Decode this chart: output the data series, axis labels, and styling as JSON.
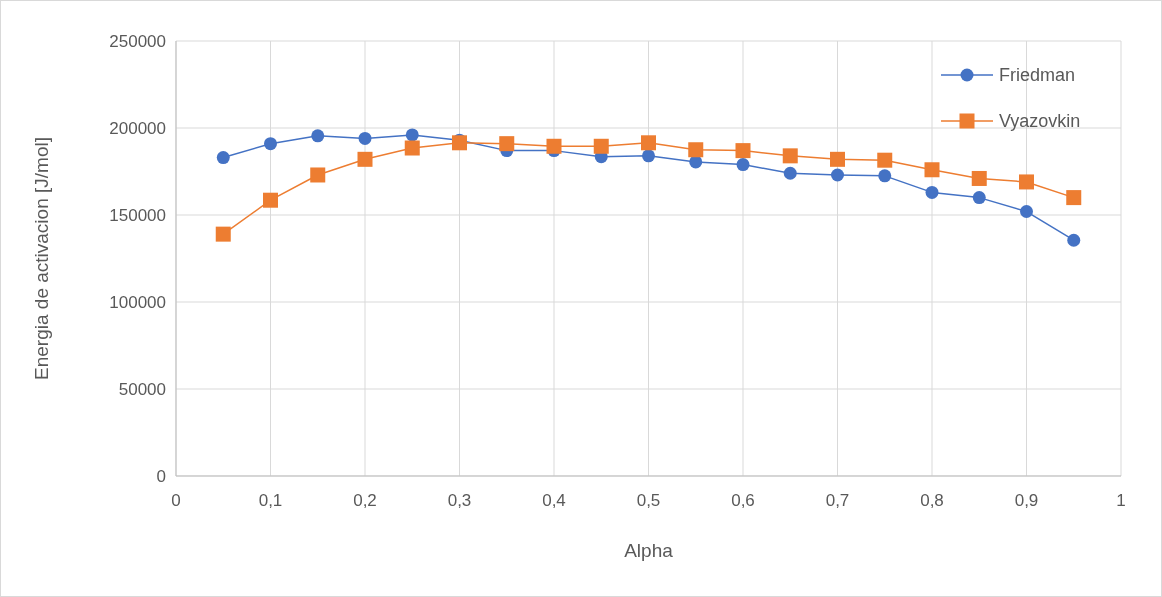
{
  "chart_data": {
    "type": "line",
    "xlabel": "Alpha",
    "ylabel": "Energia de activacion [J/mol]",
    "x": [
      0.05,
      0.1,
      0.15,
      0.2,
      0.25,
      0.3,
      0.35,
      0.4,
      0.45,
      0.5,
      0.55,
      0.6,
      0.65,
      0.7,
      0.75,
      0.8,
      0.85,
      0.9,
      0.95
    ],
    "series": [
      {
        "name": "Friedman",
        "color": "#4472c4",
        "marker": "circle",
        "values": [
          183000,
          191000,
          195500,
          194000,
          196000,
          193000,
          187000,
          187000,
          183500,
          184000,
          180500,
          179000,
          174000,
          173000,
          172500,
          163000,
          160000,
          152000,
          135500
        ]
      },
      {
        "name": "Vyazovkin",
        "color": "#ed7d31",
        "marker": "square",
        "values": [
          139000,
          158500,
          173000,
          182000,
          188500,
          191500,
          191000,
          189500,
          189500,
          191500,
          187500,
          187000,
          184000,
          182000,
          181500,
          176000,
          171000,
          169000,
          160000
        ]
      }
    ],
    "xlim": [
      0,
      1
    ],
    "xticks": [
      0,
      {
        "value": 0.1,
        "label": "0,1"
      },
      {
        "value": 0.2,
        "label": "0,2"
      },
      {
        "value": 0.3,
        "label": "0,3"
      },
      {
        "value": 0.4,
        "label": "0,4"
      },
      {
        "value": 0.5,
        "label": "0,5"
      },
      {
        "value": 0.6,
        "label": "0,6"
      },
      {
        "value": 0.7,
        "label": "0,7"
      },
      {
        "value": 0.8,
        "label": "0,8"
      },
      {
        "value": 0.9,
        "label": "0,9"
      },
      1
    ],
    "ylim": [
      0,
      250000
    ],
    "yticks": [
      0,
      50000,
      100000,
      150000,
      200000,
      250000
    ],
    "grid": true,
    "legend": "top right",
    "line_style": "solid"
  }
}
